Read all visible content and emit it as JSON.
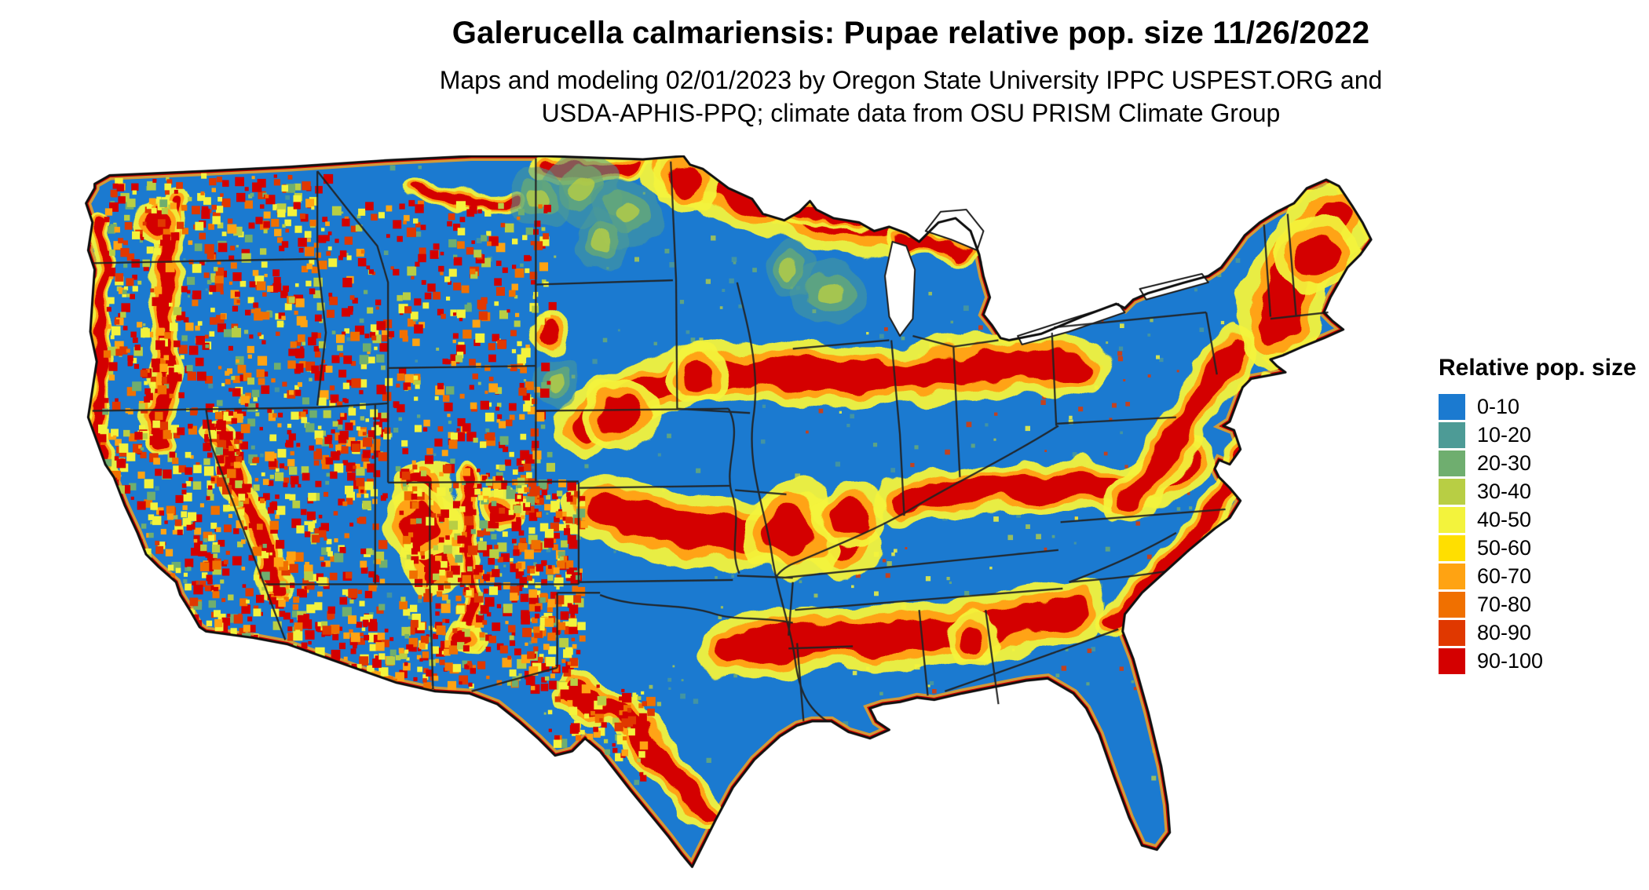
{
  "title": "Galerucella calmariensis: Pupae relative pop. size 11/26/2022",
  "subtitle": {
    "line1": "Maps and modeling 02/01/2023 by Oregon State University IPPC USPEST.ORG and",
    "line2": "USDA-APHIS-PPQ; climate data from OSU PRISM Climate Group"
  },
  "legend": {
    "title": "Relative pop. size",
    "bins": [
      {
        "label": "0-10",
        "color": "#1B7AD0"
      },
      {
        "label": "10-20",
        "color": "#4D9B96"
      },
      {
        "label": "20-30",
        "color": "#6FAE6F"
      },
      {
        "label": "30-40",
        "color": "#B8CE44"
      },
      {
        "label": "40-50",
        "color": "#F3F33C"
      },
      {
        "label": "50-60",
        "color": "#FFDF00"
      },
      {
        "label": "60-70",
        "color": "#FFA312"
      },
      {
        "label": "70-80",
        "color": "#F07000"
      },
      {
        "label": "80-90",
        "color": "#E03800"
      },
      {
        "label": "90-100",
        "color": "#D40000"
      }
    ]
  },
  "map": {
    "description": "Continental United States relative population size raster"
  }
}
